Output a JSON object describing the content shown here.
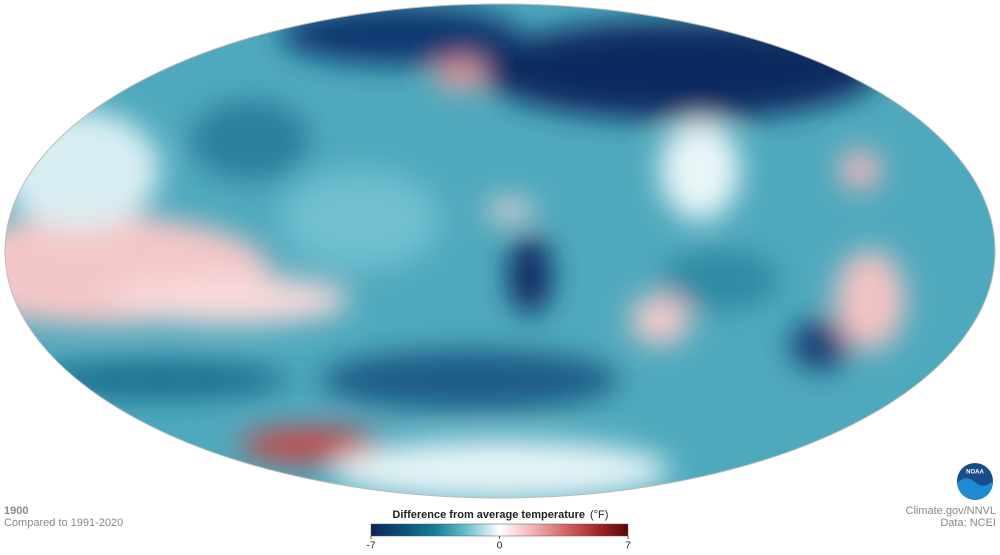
{
  "map": {
    "year": "1900",
    "baseline": "Compared to 1991-2020"
  },
  "legend": {
    "title": "Difference from average temperature",
    "unit": "(°F)",
    "min": -7,
    "max": 7,
    "ticks": [
      -7,
      0,
      7
    ],
    "colors": [
      "#0b2458",
      "#0e4f7a",
      "#157f95",
      "#6cc0cf",
      "#ffffff",
      "#f3b4b4",
      "#d46a6a",
      "#a72a2a",
      "#5a0606"
    ]
  },
  "credits": {
    "source": "Climate.gov/NNVL",
    "data": "Data: NCEI",
    "logo": "NOAA"
  }
}
